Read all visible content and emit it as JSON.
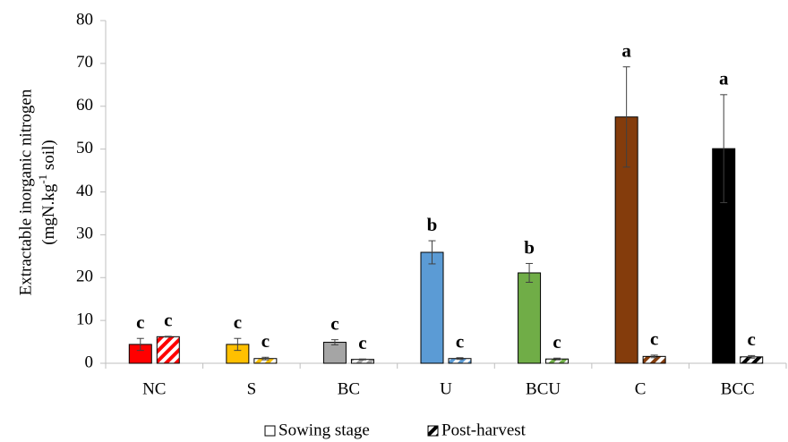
{
  "chart_data": {
    "type": "bar",
    "y_label": {
      "line1": "Extractable inorganic nitrogen",
      "line2": [
        "(mgN.kg",
        "-1",
        " soil)"
      ]
    },
    "categories": [
      "NC",
      "S",
      "BC",
      "U",
      "BCU",
      "C",
      "BCC"
    ],
    "category_colors": [
      "#ff0000",
      "#ffc000",
      "#a5a5a5",
      "#5b9bd5",
      "#70ad47",
      "#843c0c",
      "#000000"
    ],
    "series": [
      {
        "name": "Sowing stage",
        "pattern": "solid",
        "values": [
          4.4,
          4.4,
          4.9,
          25.9,
          21.1,
          57.5,
          50.1
        ],
        "errors": [
          1.4,
          1.4,
          0.6,
          2.7,
          2.2,
          11.7,
          12.6
        ],
        "letters": [
          "c",
          "c",
          "c",
          "b",
          "b",
          "a",
          "a"
        ]
      },
      {
        "name": "Post-harvest",
        "pattern": "hatch",
        "values": [
          6.2,
          1.1,
          0.9,
          1.1,
          1.0,
          1.6,
          1.5
        ],
        "errors": [
          0.1,
          0.3,
          0.1,
          0.2,
          0.2,
          0.3,
          0.3
        ],
        "letters": [
          "c",
          "c",
          "c",
          "c",
          "c",
          "c",
          "c"
        ]
      }
    ],
    "ylim": [
      0,
      80
    ],
    "yticks": [
      0,
      10,
      20,
      30,
      40,
      50,
      60,
      70,
      80
    ],
    "grid": false
  }
}
